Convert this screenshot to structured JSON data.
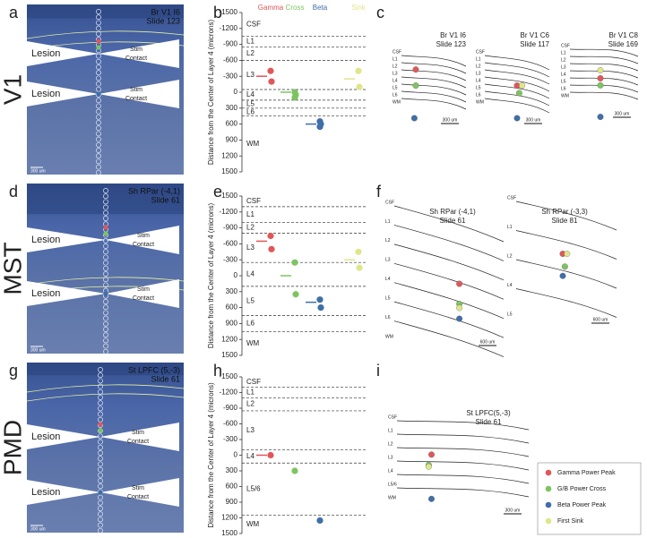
{
  "row_labels": [
    "V1",
    "MST",
    "PMD"
  ],
  "panel_letters": [
    "a",
    "b",
    "c",
    "d",
    "e",
    "f",
    "g",
    "h",
    "i"
  ],
  "histology": [
    {
      "title": "Br V1 I6",
      "slide": "Slide 123",
      "lesion": "Lesion",
      "stim": [
        "Stim",
        "Contact"
      ],
      "scale": "300 um"
    },
    {
      "title": "Sh RPar (-4,1)",
      "slide": "Slide 61",
      "lesion": "Lesion",
      "stim": [
        "Stim",
        "Contact"
      ],
      "scale": "300 um"
    },
    {
      "title": "St LPFC (5,-3)",
      "slide": "Slide 61",
      "lesion": "Lesion",
      "stim": [
        "Stim",
        "Contact"
      ],
      "scale": "300 um"
    }
  ],
  "chart_data": [
    {
      "type": "strip",
      "y_label": "Distance from the Center of Layer 4 (microns)",
      "ylim": [
        -1500,
        1500
      ],
      "y_inverted": true,
      "yticks": [
        -1500,
        -1200,
        -900,
        -600,
        -300,
        0,
        300,
        600,
        900,
        1200,
        1500
      ],
      "layers": [
        "CSF",
        "L1",
        "L2",
        "L3",
        "L4",
        "L5",
        "L6",
        "WM"
      ],
      "boundaries": [
        -1050,
        -850,
        -600,
        -50,
        150,
        300,
        450
      ],
      "series": [
        {
          "name": "Gamma",
          "color": "#e0575a",
          "values": [
            -400,
            -200
          ],
          "mean": -300
        },
        {
          "name": "Cross",
          "color": "#7dc460",
          "values": [
            0,
            50,
            100
          ],
          "mean": 0
        },
        {
          "name": "Beta",
          "color": "#3e6fa8",
          "values": [
            550,
            600,
            650
          ],
          "mean": 600
        },
        {
          "name": "Sink",
          "color": "#dfe68a",
          "values": [
            -400,
            -100
          ],
          "mean": -250
        }
      ]
    },
    {
      "type": "strip",
      "y_label": "Distance from the Center of Layer 4 (microns)",
      "ylim": [
        -1500,
        1500
      ],
      "y_inverted": true,
      "yticks": [
        -1500,
        -1200,
        -900,
        -600,
        -300,
        0,
        300,
        600,
        900,
        1200,
        1500
      ],
      "layers": [
        "CSF",
        "L1",
        "L2",
        "L3",
        "L4",
        "L5",
        "L6",
        "WM"
      ],
      "boundaries": [
        -1300,
        -1000,
        -800,
        -250,
        200,
        750,
        1050
      ],
      "series": [
        {
          "color": "#e0575a",
          "values": [
            -750,
            -500
          ],
          "mean": -650
        },
        {
          "color": "#7dc460",
          "values": [
            -250,
            350
          ],
          "mean": 0
        },
        {
          "color": "#3e6fa8",
          "values": [
            450,
            600
          ],
          "mean": 500
        },
        {
          "color": "#dfe68a",
          "values": [
            -450,
            -150
          ],
          "mean": -300
        }
      ]
    },
    {
      "type": "strip",
      "y_label": "Distance from the Center of Layer 4 (microns)",
      "ylim": [
        -1500,
        1500
      ],
      "y_inverted": true,
      "yticks": [
        -1500,
        -1200,
        -900,
        -600,
        -300,
        0,
        300,
        600,
        900,
        1200,
        1500
      ],
      "layers": [
        "CSF",
        "L1",
        "L2",
        "L3",
        "L4",
        "L5/6",
        "WM"
      ],
      "boundaries": [
        -1300,
        -1100,
        -850,
        -100,
        150,
        1150
      ],
      "series": [
        {
          "color": "#e0575a",
          "values": [
            0
          ],
          "mean": 0
        },
        {
          "color": "#7dc460",
          "values": [
            300
          ]
        },
        {
          "color": "#3e6fa8",
          "values": [
            1250
          ]
        },
        {
          "color": "#dfe68a",
          "values": []
        }
      ]
    }
  ],
  "drawings": [
    {
      "title": "Br V1 I6",
      "slide": "Slide 123",
      "layers": [
        "CSF",
        "L1",
        "L2",
        "L3",
        "L4",
        "L5",
        "L6",
        "WM"
      ],
      "scale": "300 um"
    },
    {
      "title": "Br V1 C6",
      "slide": "Slide 117",
      "layers": [
        "CSF",
        "L1",
        "L2",
        "L3",
        "L4",
        "L5",
        "L6",
        "WM"
      ],
      "scale": "300 um"
    },
    {
      "title": "Br V1 C8",
      "slide": "Slide 169",
      "layers": [
        "CSF",
        "L1",
        "L2",
        "L3",
        "L4",
        "L5",
        "L6",
        "WM"
      ],
      "scale": "300 um"
    },
    {
      "title": "Sh RPar (-4,1)",
      "slide": "Slide 61",
      "layers": [
        "CSF",
        "L1",
        "L2",
        "L3",
        "L4",
        "L5",
        "L6",
        "WM"
      ],
      "scale": "600 um"
    },
    {
      "title": "Sh RPar (-3,3)",
      "slide": "Slide 81",
      "layers": [
        "CSF",
        "L1",
        "L2",
        "L4",
        "L5"
      ],
      "scale": "600 um"
    },
    {
      "title": "St LPFC(5,-3)",
      "slide": "Slide 61",
      "layers": [
        "CSF",
        "L1",
        "L2",
        "L3",
        "L4",
        "L5/6",
        "WM"
      ],
      "scale": "300 um"
    }
  ],
  "legend": {
    "labels": [
      "Gamma Power Peak",
      "G/B Power Cross",
      "Beta Power Peak",
      "First Sink"
    ],
    "colors": [
      "#e0575a",
      "#7dc460",
      "#3e6fa8",
      "#dfe68a"
    ]
  }
}
